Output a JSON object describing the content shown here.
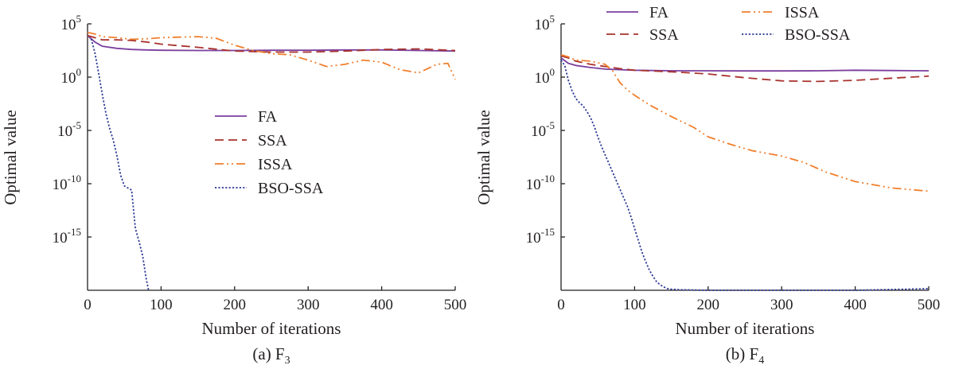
{
  "chart_data": [
    {
      "type": "line",
      "caption": "(a) F",
      "caption_sub": "3",
      "xlabel": "Number of iterations",
      "ylabel": "Optimal value",
      "xlim": [
        0,
        500
      ],
      "ylim_exponent": [
        -20,
        5
      ],
      "y_scale": "log",
      "grid": false,
      "legend_position": "center",
      "x_ticks": [
        "0",
        "100",
        "200",
        "300",
        "400",
        "500"
      ],
      "y_ticks": [
        {
          "exp": 5,
          "label": "5"
        },
        {
          "exp": 0,
          "label": "0"
        },
        {
          "exp": -5,
          "label": "-5"
        },
        {
          "exp": -10,
          "label": "-10"
        },
        {
          "exp": -15,
          "label": "-15"
        }
      ],
      "series": [
        {
          "name": "FA",
          "color": "#7b3f9e",
          "dash": "solid",
          "x": [
            0,
            10,
            20,
            40,
            60,
            80,
            100,
            150,
            200,
            250,
            300,
            350,
            400,
            450,
            500
          ],
          "log10_y": [
            3.9,
            3.3,
            2.9,
            2.7,
            2.6,
            2.55,
            2.52,
            2.5,
            2.5,
            2.52,
            2.52,
            2.55,
            2.55,
            2.5,
            2.45
          ]
        },
        {
          "name": "SSA",
          "color": "#a8322d",
          "dash": "dashed",
          "x": [
            0,
            20,
            40,
            60,
            80,
            100,
            150,
            200,
            250,
            300,
            350,
            400,
            450,
            500
          ],
          "log10_y": [
            3.9,
            3.5,
            3.5,
            3.45,
            3.3,
            3.1,
            2.8,
            2.45,
            2.35,
            2.35,
            2.45,
            2.6,
            2.65,
            2.5
          ]
        },
        {
          "name": "ISSA",
          "color": "#f07f2d",
          "dash": "dash-dot-dot",
          "x": [
            0,
            10,
            20,
            40,
            60,
            80,
            100,
            120,
            150,
            175,
            200,
            225,
            250,
            275,
            300,
            325,
            350,
            375,
            400,
            425,
            450,
            475,
            490,
            500
          ],
          "log10_y": [
            4.2,
            4.05,
            3.8,
            3.7,
            3.55,
            3.6,
            3.7,
            3.75,
            3.8,
            3.65,
            3.0,
            2.5,
            2.2,
            2.1,
            1.6,
            1.0,
            1.2,
            1.6,
            1.4,
            0.7,
            0.4,
            1.2,
            1.3,
            -0.2
          ]
        },
        {
          "name": "BSO-SSA",
          "color": "#2e3b94",
          "dash": "dotted",
          "x": [
            5,
            10,
            15,
            20,
            25,
            30,
            35,
            40,
            45,
            50,
            55,
            60,
            65,
            70,
            75,
            80,
            83
          ],
          "log10_y": [
            3.6,
            2.3,
            0.4,
            -1.6,
            -3.4,
            -4.8,
            -5.9,
            -7.4,
            -9.2,
            -10.2,
            -10.4,
            -10.6,
            -14.2,
            -15.4,
            -16.8,
            -19.0,
            -20.0
          ]
        }
      ]
    },
    {
      "type": "line",
      "caption": "(b) F",
      "caption_sub": "4",
      "xlabel": "Number of iterations",
      "ylabel": "Optimal value",
      "xlim": [
        0,
        500
      ],
      "ylim_exponent": [
        -20,
        5
      ],
      "y_scale": "log",
      "grid": false,
      "legend_position": "top",
      "x_ticks": [
        "0",
        "100",
        "200",
        "300",
        "400",
        "500"
      ],
      "y_ticks": [
        {
          "exp": 5,
          "label": "5"
        },
        {
          "exp": 0,
          "label": "0"
        },
        {
          "exp": -5,
          "label": "-5"
        },
        {
          "exp": -10,
          "label": "-10"
        },
        {
          "exp": -15,
          "label": "-15"
        }
      ],
      "series": [
        {
          "name": "FA",
          "color": "#7b3f9e",
          "dash": "solid",
          "x": [
            0,
            10,
            20,
            40,
            60,
            80,
            100,
            150,
            200,
            250,
            300,
            350,
            400,
            450,
            500
          ],
          "log10_y": [
            1.8,
            1.3,
            1.1,
            0.9,
            0.75,
            0.7,
            0.65,
            0.6,
            0.6,
            0.58,
            0.58,
            0.6,
            0.65,
            0.62,
            0.6
          ]
        },
        {
          "name": "SSA",
          "color": "#a8322d",
          "dash": "dashed",
          "x": [
            0,
            10,
            20,
            40,
            60,
            80,
            100,
            150,
            200,
            250,
            300,
            350,
            400,
            450,
            500
          ],
          "log10_y": [
            2.0,
            1.8,
            1.5,
            1.2,
            1.0,
            0.8,
            0.65,
            0.5,
            0.3,
            -0.05,
            -0.35,
            -0.4,
            -0.3,
            -0.1,
            0.1
          ]
        },
        {
          "name": "ISSA",
          "color": "#f07f2d",
          "dash": "dash-dot-dot",
          "x": [
            0,
            10,
            20,
            40,
            60,
            70,
            80,
            90,
            100,
            120,
            150,
            180,
            200,
            230,
            260,
            300,
            330,
            360,
            400,
            450,
            500
          ],
          "log10_y": [
            2.1,
            1.9,
            1.6,
            1.5,
            1.2,
            0.6,
            -0.5,
            -1.2,
            -1.7,
            -2.6,
            -3.7,
            -4.7,
            -5.6,
            -6.3,
            -6.9,
            -7.4,
            -8.0,
            -8.9,
            -9.8,
            -10.4,
            -10.7
          ]
        },
        {
          "name": "BSO-SSA",
          "color": "#2e3b94",
          "dash": "dotted",
          "x": [
            0,
            5,
            10,
            15,
            20,
            25,
            30,
            35,
            40,
            45,
            50,
            55,
            60,
            65,
            70,
            75,
            80,
            85,
            90,
            95,
            100,
            105,
            110,
            115,
            120,
            125,
            130,
            135,
            140,
            145,
            150,
            160,
            200,
            300,
            400,
            500
          ],
          "log10_y": [
            1.6,
            1.1,
            -0.3,
            -1.3,
            -2.0,
            -2.4,
            -2.7,
            -3.2,
            -3.8,
            -4.6,
            -5.6,
            -6.5,
            -7.3,
            -8.1,
            -8.9,
            -9.7,
            -10.5,
            -11.3,
            -12.1,
            -13.1,
            -14.2,
            -15.3,
            -16.4,
            -17.3,
            -18.1,
            -18.7,
            -19.2,
            -19.5,
            -19.7,
            -19.85,
            -19.9,
            -19.95,
            -20.0,
            -20.0,
            -20.0,
            -19.85
          ]
        }
      ]
    }
  ]
}
